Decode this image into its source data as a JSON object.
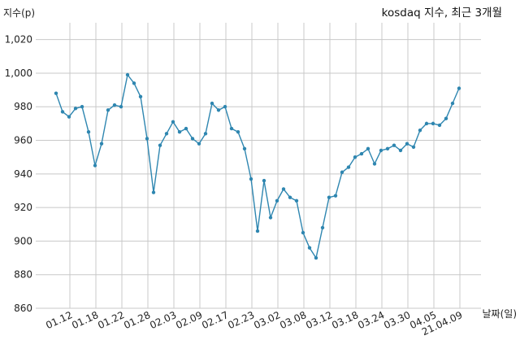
{
  "chart_data": {
    "type": "line",
    "title": "kosdaq 지수, 최근 3개월",
    "ylabel": "지수(p)",
    "xlabel": "날짜(일)",
    "ylim": [
      860,
      1030
    ],
    "yticks": [
      860,
      880,
      900,
      920,
      940,
      960,
      980,
      1000,
      1020
    ],
    "ytick_labels": [
      "860",
      "880",
      "900",
      "920",
      "940",
      "960",
      "980",
      "1,000",
      "1,020"
    ],
    "xtick_labels": [
      "01.12",
      "01.18",
      "01.22",
      "01.28",
      "02.03",
      "02.09",
      "02.17",
      "02.23",
      "03.02",
      "03.08",
      "03.12",
      "03.18",
      "03.24",
      "03.30",
      "04.05",
      "21.04.09"
    ],
    "grid": true,
    "colors": {
      "line": "#2e86b0",
      "grid": "#c8c8c8"
    },
    "series": [
      {
        "values": [
          988,
          977,
          974,
          979,
          980,
          965,
          945,
          958,
          978,
          981,
          980,
          999,
          994,
          986,
          961,
          929,
          957,
          964,
          971,
          965,
          967,
          961,
          958,
          964,
          982,
          978,
          980,
          967,
          965,
          955,
          937,
          906,
          936,
          914,
          924,
          931,
          926,
          924,
          905,
          896,
          890,
          908,
          926,
          927,
          941,
          944,
          950,
          952,
          955,
          946,
          954,
          955,
          957,
          954,
          958,
          956,
          966,
          970,
          970,
          969,
          973,
          982,
          991
        ]
      }
    ]
  }
}
